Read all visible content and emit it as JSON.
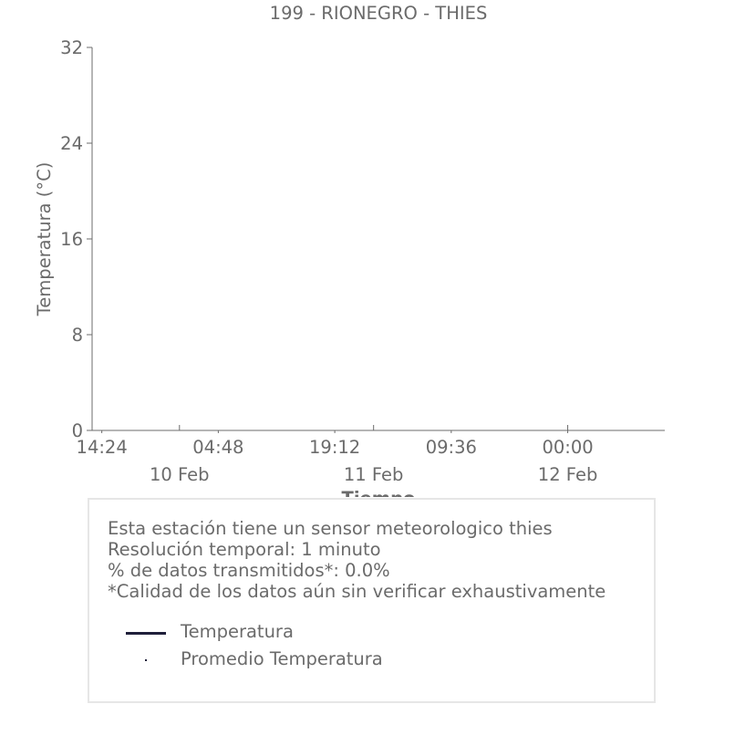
{
  "chart_data": {
    "type": "line",
    "title": "199 - RIONEGRO - THIES",
    "xlabel": "Tiempo",
    "ylabel": "Temperatura (°C)",
    "ylim": [
      0,
      32
    ],
    "yticks": [
      "0",
      "8",
      "16",
      "24",
      "32"
    ],
    "yticks_values": [
      0,
      8,
      16,
      24,
      32
    ],
    "xlim_hours": [
      -1.2,
      69.6
    ],
    "xticks_minor": [
      {
        "label": "14:24",
        "hour": 0
      },
      {
        "label": "04:48",
        "hour": 14.4
      },
      {
        "label": "19:12",
        "hour": 28.8
      },
      {
        "label": "09:36",
        "hour": 43.2
      },
      {
        "label": "00:00",
        "hour": 57.6
      }
    ],
    "xticks_major": [
      {
        "label": "10 Feb",
        "hour": 9.6
      },
      {
        "label": "11 Feb",
        "hour": 33.6
      },
      {
        "label": "12 Feb",
        "hour": 57.6
      }
    ],
    "series": [
      {
        "name": "Temperatura",
        "color": "#1f1f3a",
        "values": []
      },
      {
        "name": "Promedio Temperatura",
        "color": "#1f1f3a",
        "values": []
      }
    ],
    "grid": false
  },
  "info": {
    "lines": [
      "Esta estación tiene un sensor meteorologico thies",
      "Resolución temporal: 1 minuto",
      "% de datos transmitidos*: 0.0%",
      "*Calidad de los datos aún sin verificar exhaustivamente"
    ]
  },
  "legend": {
    "items": [
      {
        "label": "Temperatura",
        "marker": "line",
        "color": "#1f1f3a"
      },
      {
        "label": "Promedio Temperatura",
        "marker": "dot",
        "color": "#1f1f3a"
      }
    ]
  },
  "colors": {
    "axis": "#6b6b6b",
    "text": "#6b6b6b",
    "border": "#e6e6e6"
  }
}
